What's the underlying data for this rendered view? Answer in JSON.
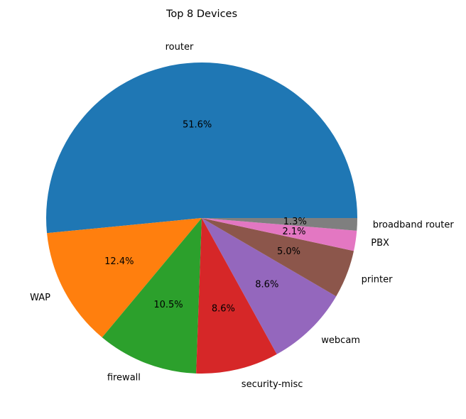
{
  "chart_data": {
    "type": "pie",
    "title": "Top 8 Devices",
    "start_angle_deg": 0,
    "direction": "counterclockwise",
    "slices": [
      {
        "label": "router",
        "value": 51.6,
        "pct_label": "51.6%",
        "color": "#1f77b4"
      },
      {
        "label": "WAP",
        "value": 12.4,
        "pct_label": "12.4%",
        "color": "#ff7f0e"
      },
      {
        "label": "firewall",
        "value": 10.5,
        "pct_label": "10.5%",
        "color": "#2ca02c"
      },
      {
        "label": "security-misc",
        "value": 8.6,
        "pct_label": "8.6%",
        "color": "#d62728"
      },
      {
        "label": "webcam",
        "value": 8.6,
        "pct_label": "8.6%",
        "color": "#9467bd"
      },
      {
        "label": "printer",
        "value": 5.0,
        "pct_label": "5.0%",
        "color": "#8c564b"
      },
      {
        "label": "PBX",
        "value": 2.1,
        "pct_label": "2.1%",
        "color": "#e377c2"
      },
      {
        "label": "broadband router",
        "value": 1.3,
        "pct_label": "1.3%",
        "color": "#7f7f7f"
      }
    ]
  }
}
